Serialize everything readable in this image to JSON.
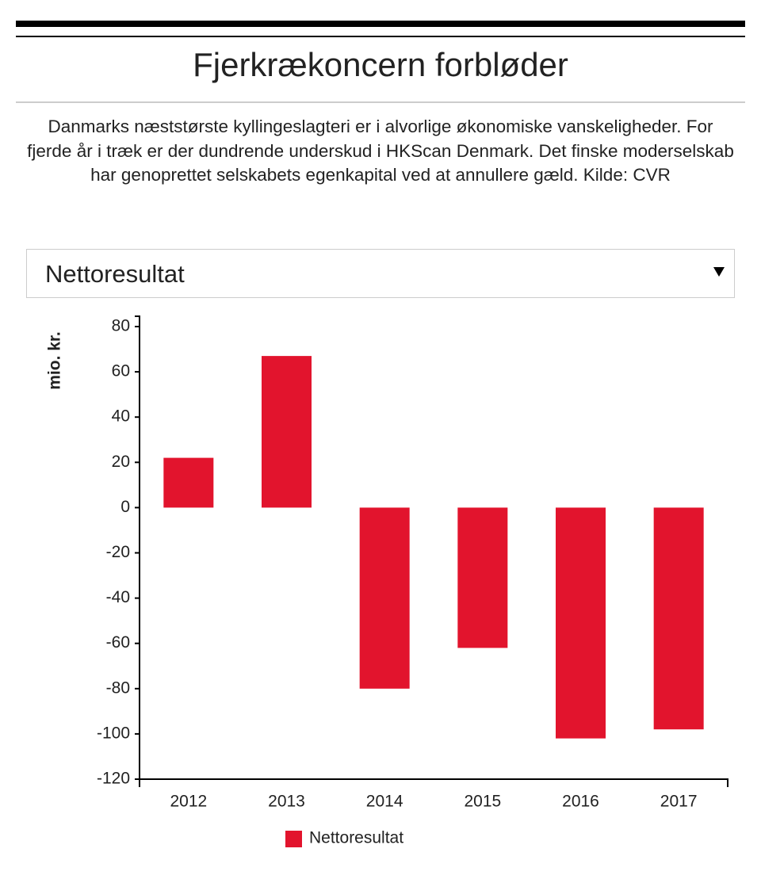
{
  "chart_data": {
    "type": "bar",
    "title": "Fjerkrækoncern forbløder",
    "subtitle": "Danmarks næststørste kyllingeslagteri er i alvorlige økonomiske vanskeligheder. For fjerde år i træk er der dundrende underskud i HKScan Denmark. Det finske moderselskab har genoprettet selskabets egenkapital ved at annullere gæld. Kilde: CVR",
    "ylabel": "mio. kr.",
    "categories": [
      "2012",
      "2013",
      "2014",
      "2015",
      "2016",
      "2017"
    ],
    "series": [
      {
        "name": "Nettoresultat",
        "color": "#e2142d",
        "values": [
          22,
          67,
          -80,
          -62,
          -102,
          -98
        ]
      }
    ],
    "ylim": [
      -120,
      80
    ],
    "yticks": [
      -120,
      -100,
      -80,
      -60,
      -40,
      -20,
      0,
      20,
      40,
      60,
      80
    ],
    "grid": false,
    "legend": "bottom"
  },
  "dropdown": {
    "selected": "Nettoresultat"
  }
}
